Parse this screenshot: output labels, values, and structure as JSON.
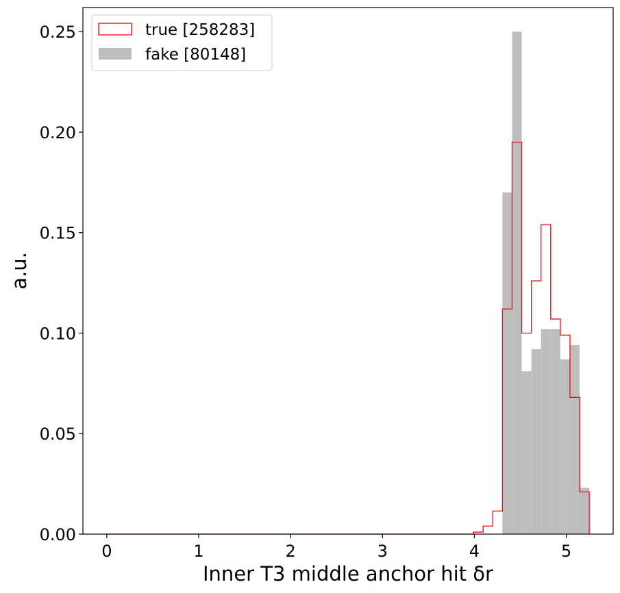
{
  "chart_data": {
    "type": "histogram",
    "title": "",
    "xlabel": "Inner T3 middle anchor hit δr",
    "ylabel": "a.u.",
    "xlim": [
      -0.26,
      5.51
    ],
    "ylim": [
      0,
      0.262
    ],
    "xticks": [
      0,
      1,
      2,
      3,
      4,
      5
    ],
    "xtick_labels": [
      "0",
      "1",
      "2",
      "3",
      "4",
      "5"
    ],
    "yticks": [
      0.0,
      0.05,
      0.1,
      0.15,
      0.2,
      0.25
    ],
    "ytick_labels": [
      "0.00",
      "0.05",
      "0.10",
      "0.15",
      "0.20",
      "0.25"
    ],
    "grid": false,
    "legend_position": "top-left",
    "bin_edges": [
      0.0,
      0.105,
      0.21,
      0.315,
      0.42,
      0.525,
      0.63,
      0.735,
      0.84,
      0.945,
      1.05,
      1.155,
      1.26,
      1.365,
      1.47,
      1.575,
      1.68,
      1.785,
      1.89,
      1.995,
      2.1,
      2.205,
      2.31,
      2.415,
      2.52,
      2.625,
      2.73,
      2.835,
      2.94,
      3.045,
      3.15,
      3.255,
      3.36,
      3.465,
      3.57,
      3.675,
      3.78,
      3.885,
      3.99,
      4.095,
      4.2,
      4.305,
      4.41,
      4.515,
      4.62,
      4.725,
      4.83,
      4.935,
      5.04,
      5.145,
      5.25
    ],
    "series": [
      {
        "name": "true [258283]",
        "style": "step",
        "color": "#ff0000",
        "values": [
          0,
          0,
          0,
          0,
          0,
          0,
          0,
          0,
          0,
          0,
          0,
          0,
          0,
          0,
          0,
          0,
          0,
          0,
          0,
          0,
          0,
          0,
          0,
          0,
          0,
          0,
          0,
          0,
          0,
          0,
          0,
          0,
          0,
          0,
          0,
          0,
          0,
          0,
          0.001,
          0.004,
          0.0115,
          0.112,
          0.195,
          0.1,
          0.126,
          0.154,
          0.107,
          0.099,
          0.068,
          0.021
        ]
      },
      {
        "name": "fake [80148]",
        "style": "filled",
        "color": "#bebebe",
        "values": [
          0,
          0,
          0,
          0,
          0,
          0,
          0,
          0,
          0,
          0,
          0,
          0,
          0,
          0,
          0,
          0,
          0,
          0,
          0,
          0,
          0,
          0,
          0,
          0,
          0,
          0,
          0,
          0,
          0,
          0,
          0,
          0,
          0,
          0,
          0,
          0,
          0,
          0,
          0,
          0,
          0,
          0.17,
          0.25,
          0.081,
          0.092,
          0.102,
          0.102,
          0.087,
          0.094,
          0.023
        ]
      }
    ]
  }
}
